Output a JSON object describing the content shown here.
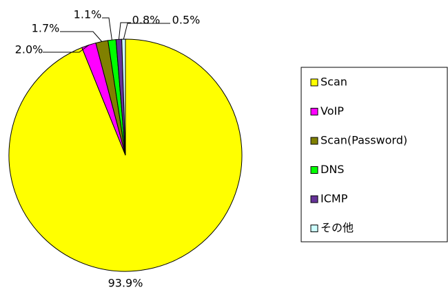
{
  "chart_data": {
    "type": "pie",
    "categories": [
      "Scan",
      "VoIP",
      "Scan(Password)",
      "DNS",
      "ICMP",
      "その他"
    ],
    "values": [
      93.9,
      2.0,
      1.7,
      1.1,
      0.8,
      0.5
    ],
    "value_labels": [
      "93.9%",
      "2.0%",
      "1.7%",
      "1.1%",
      "0.8%",
      "0.5%"
    ],
    "colors": [
      "#ffff00",
      "#ff00ff",
      "#808000",
      "#00ff00",
      "#663399",
      "#ccffff"
    ],
    "legend": "right"
  }
}
